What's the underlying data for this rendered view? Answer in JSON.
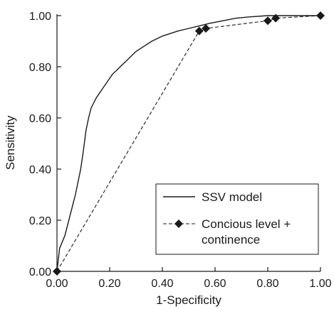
{
  "chart_data": {
    "type": "line",
    "xlabel": "1-Specificity",
    "ylabel": "Sensitivity",
    "xlim": [
      0,
      1
    ],
    "ylim": [
      0,
      1
    ],
    "grid": false,
    "legend_position": "bottom-right",
    "x_ticks": [
      "0.00",
      "0.20",
      "0.40",
      "0.60",
      "0.80",
      "1.00"
    ],
    "y_ticks": [
      "0.00",
      "0.20",
      "0.40",
      "0.60",
      "0.80",
      "1.00"
    ],
    "colors": {
      "line": "#1a1a1a",
      "marker": "#1a1a1a",
      "axis": "#1a1a1a"
    },
    "series": [
      {
        "name": "SSV model",
        "line_style": "solid",
        "marker": "none",
        "x": [
          0.0,
          0.01,
          0.03,
          0.05,
          0.07,
          0.09,
          0.1,
          0.11,
          0.12,
          0.13,
          0.14,
          0.15,
          0.17,
          0.19,
          0.21,
          0.23,
          0.24,
          0.25,
          0.27,
          0.3,
          0.33,
          0.36,
          0.38,
          0.4,
          0.43,
          0.46,
          0.5,
          0.54,
          0.58,
          0.63,
          0.68,
          0.73,
          0.8,
          0.9,
          1.0
        ],
        "y": [
          0.0,
          0.09,
          0.14,
          0.22,
          0.3,
          0.4,
          0.47,
          0.55,
          0.6,
          0.64,
          0.66,
          0.68,
          0.71,
          0.74,
          0.77,
          0.79,
          0.8,
          0.81,
          0.83,
          0.86,
          0.88,
          0.9,
          0.91,
          0.92,
          0.93,
          0.94,
          0.95,
          0.96,
          0.97,
          0.98,
          0.99,
          0.995,
          1.0,
          1.0,
          1.0
        ]
      },
      {
        "name": "Concious level + continence",
        "line_style": "dashed",
        "marker": "diamond",
        "x": [
          0.0,
          0.54,
          0.565,
          0.8,
          0.83,
          1.0
        ],
        "y": [
          0.0,
          0.94,
          0.95,
          0.98,
          0.99,
          1.0
        ]
      }
    ]
  }
}
